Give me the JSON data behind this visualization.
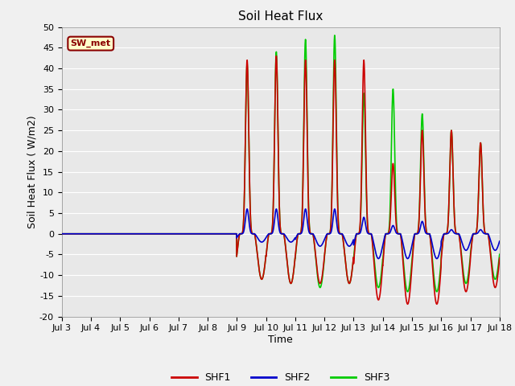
{
  "title": "Soil Heat Flux",
  "ylabel": "Soil Heat Flux ( W/m2)",
  "xlabel": "Time",
  "annotation": "SW_met",
  "ylim": [
    -20,
    50
  ],
  "xlim": [
    0,
    15
  ],
  "fig_bg_color": "#f0f0f0",
  "plot_bg_color": "#e8e8e8",
  "grid_color": "white",
  "shf1_color": "#cc0000",
  "shf2_color": "#0000cc",
  "shf3_color": "#00cc00",
  "legend_labels": [
    "SHF1",
    "SHF2",
    "SHF3"
  ],
  "xtick_labels": [
    "Jul 3",
    "Jul 4",
    "Jul 5",
    "Jul 6",
    "Jul 7",
    "Jul 8",
    "Jul 9",
    "Jul 10",
    "Jul 11",
    "Jul 12",
    "Jul 13",
    "Jul 14",
    "Jul 15",
    "Jul 16",
    "Jul 17",
    "Jul 18"
  ],
  "ytick_vals": [
    -20,
    -15,
    -10,
    -5,
    0,
    5,
    10,
    15,
    20,
    25,
    30,
    35,
    40,
    45,
    50
  ],
  "start_day": 6,
  "s1p": [
    42,
    43,
    42,
    42,
    42,
    17,
    25,
    25,
    22
  ],
  "s1n": [
    11,
    12,
    12,
    12,
    16,
    17,
    17,
    14,
    13
  ],
  "s2p": [
    6,
    6,
    6,
    6,
    4,
    2,
    3,
    1,
    1
  ],
  "s2n": [
    2,
    2,
    3,
    3,
    6,
    6,
    6,
    4,
    4
  ],
  "s3p": [
    41,
    44,
    47,
    48,
    34,
    35,
    29,
    25,
    22
  ],
  "s3n": [
    11,
    12,
    13,
    12,
    13,
    14,
    14,
    12,
    11
  ],
  "phase_peak": 0.35,
  "spike_sharpness": 8.0,
  "title_fontsize": 11,
  "label_fontsize": 8,
  "legend_fontsize": 9,
  "linewidth": 1.2,
  "annotation_fontsize": 8
}
